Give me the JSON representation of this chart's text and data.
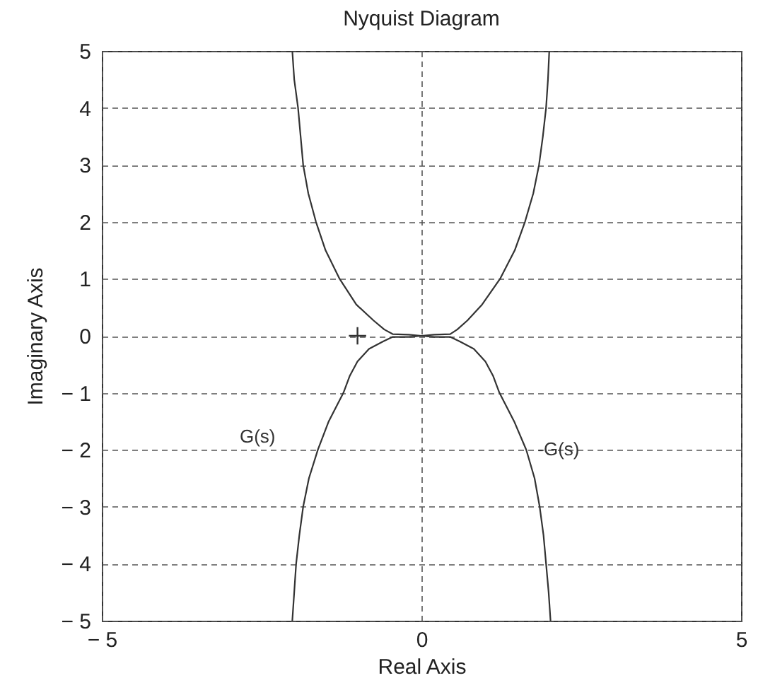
{
  "chart_data": {
    "type": "line",
    "title": "Nyquist Diagram",
    "xlabel": "Real Axis",
    "ylabel": "Imaginary Axis",
    "series": [
      {
        "name": "G(s)",
        "color": "#333333",
        "x": [
          -2.02,
          -1.99,
          -1.93,
          -1.89,
          -1.85,
          -1.77,
          -1.65,
          -1.5,
          -1.28,
          -1.02,
          -0.75,
          -0.58,
          -0.45,
          -0.2,
          0,
          -0.2,
          -0.45,
          -0.6,
          -0.82,
          -1.0,
          -1.12,
          -1.22,
          -1.45,
          -1.62,
          -1.76,
          -1.85,
          -1.91,
          -1.96,
          -1.99,
          -2.02
        ],
        "values": [
          5,
          4.5,
          4,
          3.5,
          3,
          2.5,
          2,
          1.5,
          1,
          0.55,
          0.27,
          0.11,
          0.03,
          0.02,
          0,
          -0.02,
          -0.02,
          -0.1,
          -0.23,
          -0.45,
          -0.7,
          -1,
          -1.5,
          -2,
          -2.5,
          -3,
          -3.5,
          -4,
          -4.5,
          -5
        ]
      },
      {
        "name": "-G(s)",
        "color": "#333333",
        "x": [
          2.0,
          1.98,
          1.95,
          1.9,
          1.84,
          1.75,
          1.62,
          1.46,
          1.23,
          0.95,
          0.72,
          0.56,
          0.45,
          0.2,
          0,
          0.2,
          0.45,
          0.6,
          0.82,
          1.0,
          1.12,
          1.22,
          1.45,
          1.64,
          1.77,
          1.85,
          1.91,
          1.95,
          1.99,
          2.02
        ],
        "values": [
          5,
          4.5,
          4,
          3.5,
          3,
          2.5,
          2,
          1.5,
          1,
          0.55,
          0.27,
          0.11,
          0.03,
          0.02,
          0,
          -0.02,
          -0.02,
          -0.1,
          -0.23,
          -0.45,
          -0.7,
          -1,
          -1.5,
          -2,
          -2.5,
          -3,
          -3.5,
          -4,
          -4.5,
          -5
        ]
      },
      {
        "type": "scatter",
        "marker": "cross",
        "color": "#333333",
        "x": [
          -1
        ],
        "values": [
          0
        ]
      }
    ],
    "xlim": [
      -5,
      5
    ],
    "ylim": [
      -5,
      5
    ],
    "xticks": [
      {
        "value": -5,
        "label": "− 5"
      },
      0,
      5
    ],
    "yticks": [
      {
        "value": -5,
        "label": "− 5"
      },
      {
        "value": -4,
        "label": "− 4"
      },
      {
        "value": -3,
        "label": "− 3"
      },
      {
        "value": -2,
        "label": "− 2"
      },
      {
        "value": -1,
        "label": "− 1"
      },
      0,
      1,
      2,
      3,
      4,
      5
    ],
    "grid": true
  }
}
